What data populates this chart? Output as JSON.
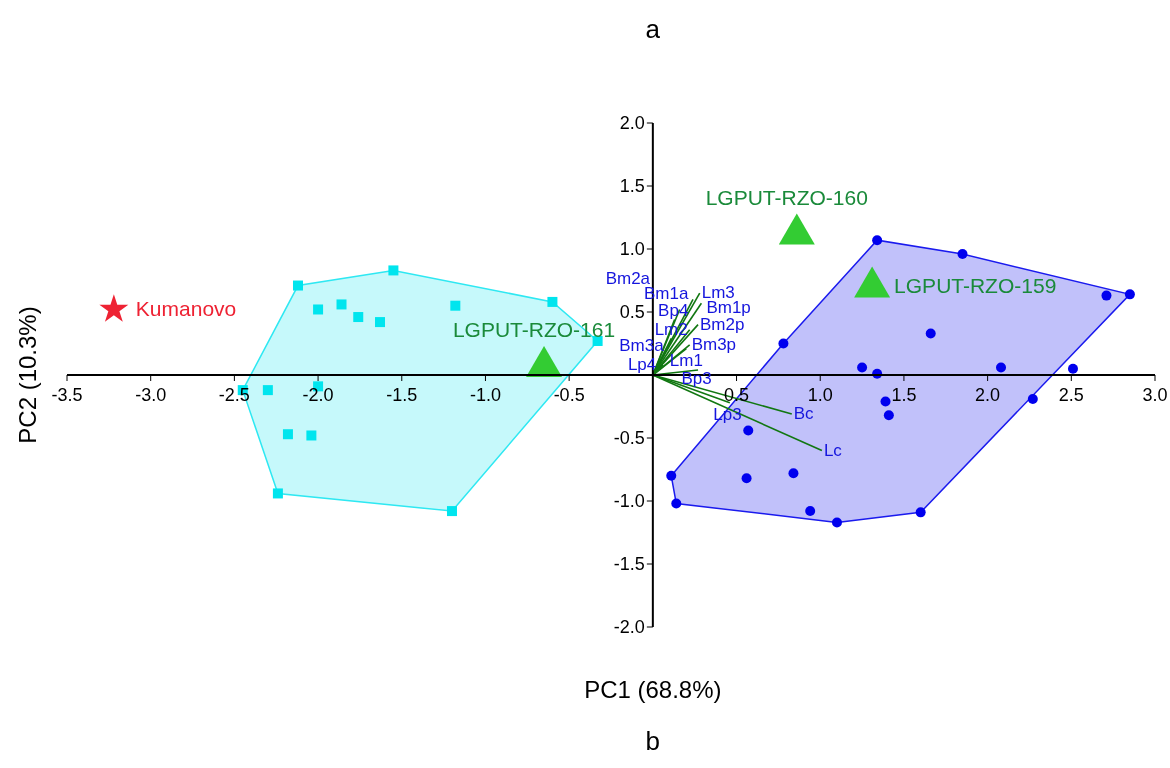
{
  "chart_data": {
    "type": "scatter",
    "title": "a",
    "xlabel": "PC1 (68.8%)",
    "ylabel": "PC2 (10.3%)",
    "annotations": [
      "b"
    ],
    "xlim": [
      -3.5,
      3.0
    ],
    "ylim": [
      -2.0,
      2.0
    ],
    "xticks": [
      {
        "value": -3.5,
        "label": "-3.5"
      },
      {
        "value": -3,
        "label": "-3.0"
      },
      {
        "value": -2.5,
        "label": "-2.5"
      },
      {
        "value": -2,
        "label": "-2.0"
      },
      {
        "value": -1.5,
        "label": "-1.5"
      },
      {
        "value": -1,
        "label": "-1.0"
      },
      {
        "value": -0.5,
        "label": "-0.5"
      },
      {
        "value": 0.5,
        "label": "0.5"
      },
      {
        "value": 1,
        "label": "1.0"
      },
      {
        "value": 1.5,
        "label": "1.5"
      },
      {
        "value": 2,
        "label": "2.0"
      },
      {
        "value": 2.5,
        "label": "2.5"
      },
      {
        "value": 3,
        "label": "3.0"
      }
    ],
    "yticks": [
      {
        "value": -2,
        "label": "-2.0"
      },
      {
        "value": -1.5,
        "label": "-1.5"
      },
      {
        "value": -1,
        "label": "-1.0"
      },
      {
        "value": -0.5,
        "label": "-0.5"
      },
      {
        "value": 0.5,
        "label": "0.5"
      },
      {
        "value": 1,
        "label": "1.0"
      },
      {
        "value": 1.5,
        "label": "1.5"
      },
      {
        "value": 2,
        "label": "2.0"
      }
    ],
    "series": [
      {
        "type": "area",
        "color": "#2ee8f2",
        "x": [
          -2.45,
          -2.24,
          -1.2,
          -0.33,
          -0.6,
          -1.55,
          -2.12
        ],
        "values": [
          -0.12,
          -0.94,
          -1.08,
          0.27,
          0.58,
          0.83,
          0.71
        ]
      },
      {
        "type": "area",
        "color": "#1a1aee",
        "x": [
          0.11,
          0.14,
          1.1,
          1.6,
          2.85,
          1.85,
          1.34,
          0.78
        ],
        "values": [
          -0.8,
          -1.02,
          -1.17,
          -1.09,
          0.64,
          0.96,
          1.07,
          0.25
        ]
      },
      {
        "marker": "square",
        "color": "#00e5ee",
        "x": [
          -1.55,
          -2.12,
          -2.0,
          -1.86,
          -1.76,
          -1.63,
          -1.18,
          -0.6,
          -0.33,
          -2.45,
          -2.3,
          -2.0,
          -2.18,
          -2.04,
          -2.24,
          -1.2
        ],
        "values": [
          0.83,
          0.71,
          0.52,
          0.56,
          0.46,
          0.42,
          0.55,
          0.58,
          0.27,
          -0.12,
          -0.12,
          -0.09,
          -0.47,
          -0.48,
          -0.94,
          -1.08
        ]
      },
      {
        "marker": "circle",
        "color": "#0000ee",
        "x": [
          1.34,
          1.85,
          2.71,
          2.85,
          1.66,
          0.78,
          1.25,
          1.34,
          2.08,
          2.51,
          1.39,
          1.41,
          2.27,
          0.57,
          0.11,
          0.56,
          0.84,
          0.14,
          0.94,
          1.1,
          1.6
        ],
        "values": [
          1.07,
          0.96,
          0.63,
          0.64,
          0.33,
          0.25,
          0.06,
          0.01,
          0.06,
          0.05,
          -0.21,
          -0.32,
          -0.19,
          -0.44,
          -0.8,
          -0.82,
          -0.78,
          -1.02,
          -1.08,
          -1.17,
          -1.09
        ]
      },
      {
        "type": "line",
        "name": "Lm3",
        "color": "#117711",
        "x": [
          0,
          0.28
        ],
        "values": [
          0,
          0.65
        ]
      },
      {
        "type": "line",
        "name": "Bm1a",
        "color": "#117711",
        "x": [
          0,
          0.24
        ],
        "values": [
          0,
          0.6
        ]
      },
      {
        "type": "line",
        "name": "Bm1p",
        "color": "#117711",
        "x": [
          0,
          0.29
        ],
        "values": [
          0,
          0.57
        ]
      },
      {
        "type": "line",
        "name": "Bm2a",
        "color": "#117711",
        "x": [
          0,
          0.16
        ],
        "values": [
          0,
          0.52
        ]
      },
      {
        "type": "line",
        "name": "Bm2p",
        "color": "#117711",
        "x": [
          0,
          0.27
        ],
        "values": [
          0,
          0.4
        ]
      },
      {
        "type": "line",
        "name": "Bp4",
        "color": "#117711",
        "x": [
          0,
          0.13
        ],
        "values": [
          0,
          0.44
        ]
      },
      {
        "type": "line",
        "name": "Lm2",
        "color": "#117711",
        "x": [
          0,
          0.22
        ],
        "values": [
          0,
          0.36
        ]
      },
      {
        "type": "line",
        "name": "Bm3a",
        "color": "#117711",
        "x": [
          0,
          0.11
        ],
        "values": [
          0,
          0.29
        ]
      },
      {
        "type": "line",
        "name": "Bm3p",
        "color": "#117711",
        "x": [
          0,
          0.22
        ],
        "values": [
          0,
          0.24
        ]
      },
      {
        "type": "line",
        "name": "Lm1",
        "color": "#117711",
        "x": [
          0,
          0.2
        ],
        "values": [
          0,
          0.21
        ]
      },
      {
        "type": "line",
        "name": "Lp4",
        "color": "#117711",
        "x": [
          0,
          0.06
        ],
        "values": [
          0,
          0.08
        ]
      },
      {
        "type": "line",
        "name": "Bp3",
        "color": "#117711",
        "x": [
          0,
          0.27
        ],
        "values": [
          0,
          0.04
        ]
      },
      {
        "type": "line",
        "name": "Lp3",
        "color": "#117711",
        "x": [
          0,
          0.46
        ],
        "values": [
          0,
          -0.22
        ]
      },
      {
        "type": "line",
        "name": "Bc",
        "color": "#117711",
        "x": [
          0,
          0.83
        ],
        "values": [
          0,
          -0.31
        ]
      },
      {
        "type": "line",
        "name": "Lc",
        "color": "#117711",
        "x": [
          0,
          1.01
        ],
        "values": [
          0,
          -0.6
        ]
      },
      {
        "marker": "triangle",
        "name": "LGPUT-RZO-160",
        "color": "#33cc33",
        "x": [
          0.86
        ],
        "values": [
          1.13
        ]
      },
      {
        "marker": "triangle",
        "name": "LGPUT-RZO-159",
        "color": "#33cc33",
        "x": [
          1.31
        ],
        "values": [
          0.71
        ]
      },
      {
        "marker": "triangle",
        "name": "LGPUT-RZO-161",
        "color": "#33cc33",
        "x": [
          -0.65
        ],
        "values": [
          0.08
        ]
      },
      {
        "marker": "star",
        "name": "Kumanovo",
        "color": "#ee2233",
        "x": [
          -3.22
        ],
        "values": [
          0.52
        ]
      }
    ]
  }
}
